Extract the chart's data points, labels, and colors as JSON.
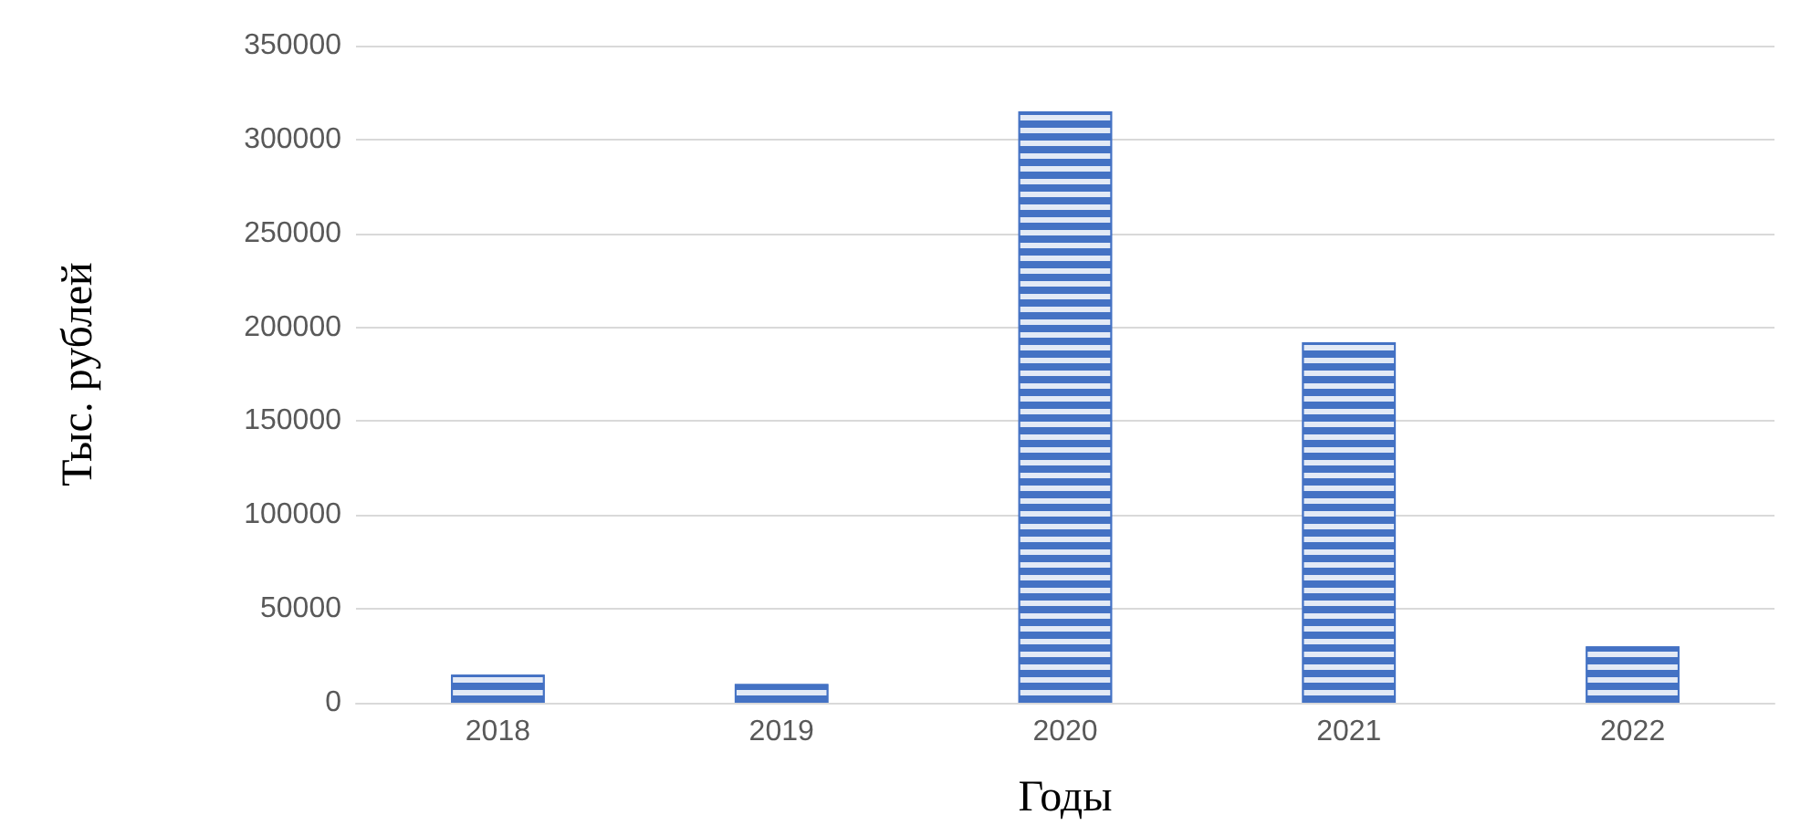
{
  "chart_data": {
    "type": "bar",
    "xlabel": "Годы",
    "ylabel": "Тыс. рублей",
    "categories": [
      "2018",
      "2019",
      "2020",
      "2021",
      "2022"
    ],
    "values": [
      15000,
      10000,
      315000,
      192000,
      30000
    ],
    "color": "#4472c4",
    "ylim": [
      0,
      350000
    ],
    "yticks": [
      0,
      50000,
      100000,
      150000,
      200000,
      250000,
      300000,
      350000
    ],
    "grid": "y"
  }
}
